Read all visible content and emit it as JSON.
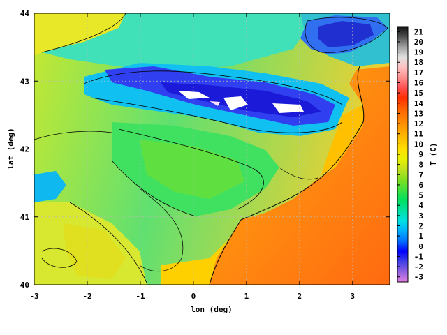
{
  "map": {
    "xlabel": "lon (deg)",
    "ylabel": "lat (deg)",
    "x_ticks": [
      "-3",
      "-2",
      "-1",
      "0",
      "1",
      "2",
      "3"
    ],
    "y_ticks": [
      "40",
      "41",
      "42",
      "43",
      "44"
    ],
    "xlim": [
      -3,
      3.7
    ],
    "ylim": [
      40,
      44
    ]
  },
  "colorbar": {
    "label": "T (C)",
    "ticks": [
      "-3",
      "-2",
      "-1",
      "0",
      "1",
      "2",
      "3",
      "4",
      "5",
      "6",
      "7",
      "8",
      "9",
      "10",
      "11",
      "12",
      "13",
      "14",
      "15",
      "16",
      "17",
      "18",
      "19",
      "20",
      "21"
    ],
    "range": [
      -3,
      21
    ],
    "colors": [
      "#e080e0",
      "#9060e0",
      "#4040e8",
      "#0000ff",
      "#0070ff",
      "#00b0ff",
      "#00e0e0",
      "#00e0a0",
      "#00e060",
      "#40e040",
      "#80e020",
      "#c0e020",
      "#e8f000",
      "#ffe000",
      "#ffc000",
      "#ffa000",
      "#ff8000",
      "#ff6000",
      "#ff3000",
      "#ff5050",
      "#ff9090",
      "#ffc0c0",
      "#e0e0e0",
      "#a0a0a0",
      "#505050",
      "#101010"
    ]
  }
}
